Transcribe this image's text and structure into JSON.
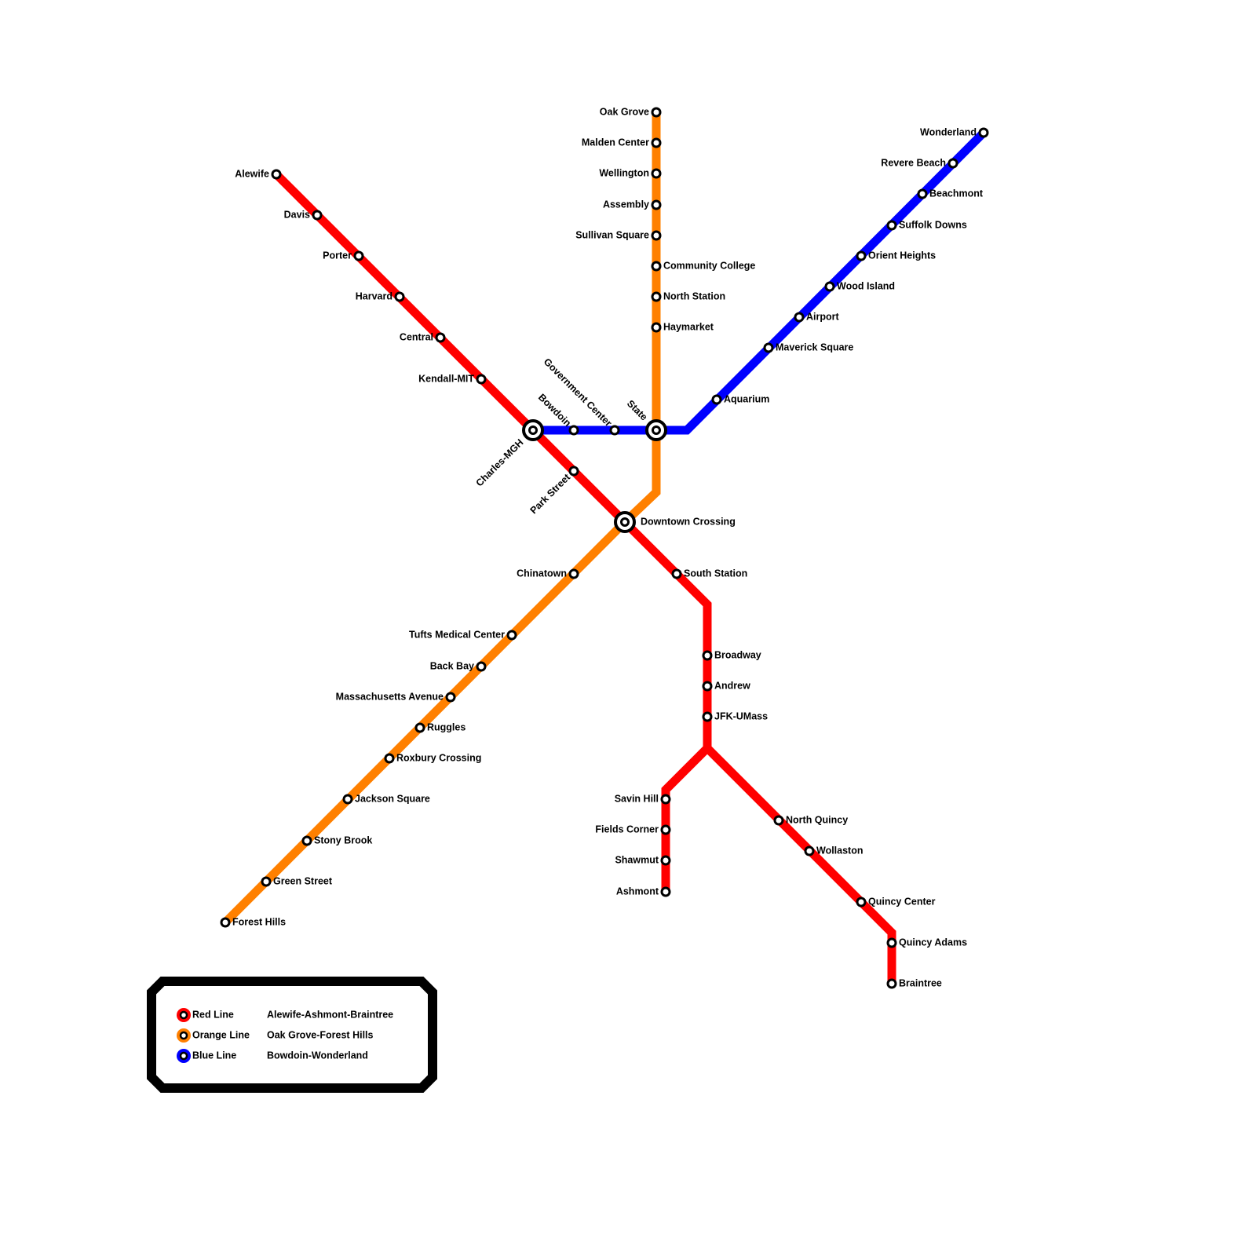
{
  "stations": [
    "Alewife",
    "Davis",
    "Porter",
    "Harvard",
    "Central",
    "Kendall-MIT",
    "Charles-MGH",
    "Park Street",
    "Downtown Crossing",
    "South Station",
    "Broadway",
    "Andrew",
    "JFK-UMass",
    "Savin Hill",
    "Fields Corner",
    "Shawmut",
    "Ashmont",
    "North Quincy",
    "Wollaston",
    "Quincy Center",
    "Quincy Adams",
    "Braintree",
    "Oak Grove",
    "Malden Center",
    "Wellington",
    "Assembly",
    "Sullivan Square",
    "Community College",
    "North Station",
    "Haymarket",
    "State",
    "Chinatown",
    "Tufts Medical Center",
    "Back Bay",
    "Massachusetts Avenue",
    "Ruggles",
    "Roxbury Crossing",
    "Jackson Square",
    "Stony Brook",
    "Green Street",
    "Forest Hills",
    "Bowdoin",
    "Government Center",
    "Aquarium",
    "Maverick Square",
    "Airport",
    "Wood Island",
    "Orient Heights",
    "Suffolk Downs",
    "Beachmont",
    "Revere Beach",
    "Wonderland"
  ],
  "legend": [
    {
      "line": "Red Line",
      "route": "Alewife-Ashmont-Braintree",
      "color": "#ff0000"
    },
    {
      "line": "Orange Line",
      "route": "Oak Grove-Forest Hills",
      "color": "#ff8000"
    },
    {
      "line": "Blue Line",
      "route": "Bowdoin-Wonderland",
      "color": "#0000ff"
    }
  ]
}
